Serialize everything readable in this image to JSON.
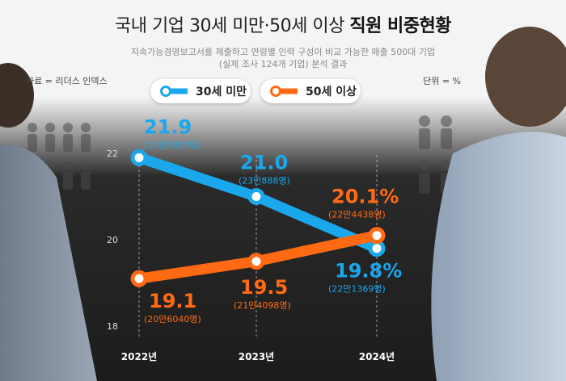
{
  "title_light": "국내 기업 30세 미만·50세 이상",
  "title_bold": "직원 비중현황",
  "subtitle_1": "지속가능경영보고서를 제출하고 연령별 인력 구성이 비교 가능한 매출 500대 기업",
  "subtitle_2": "(실제 조사 124개 기업) 분석 결과",
  "source": "자료 = 리더스 인덱스",
  "unit": "단위 = %",
  "colors": {
    "under30": "#1aa7ec",
    "over50": "#ff6a13"
  },
  "chart_data": {
    "type": "line",
    "x": [
      "2022년",
      "2023년",
      "2024년"
    ],
    "yticks": [
      "18",
      "20",
      "22"
    ],
    "ylim": [
      18,
      22
    ],
    "grid": false,
    "legend": "top",
    "series": [
      {
        "name": "30세 미만",
        "values": [
          21.9,
          21.0,
          19.8
        ],
        "value_labels": [
          "21.9",
          "21.0",
          "19.8%"
        ],
        "count_labels": [
          "(23만5923명)",
          "(23만888명)",
          "(22만1369명)"
        ]
      },
      {
        "name": "50세 이상",
        "values": [
          19.1,
          19.5,
          20.1
        ],
        "value_labels": [
          "19.1",
          "19.5",
          "20.1%"
        ],
        "count_labels": [
          "(20만6040명)",
          "(21만4098명)",
          "(22만4438명)"
        ]
      }
    ]
  }
}
